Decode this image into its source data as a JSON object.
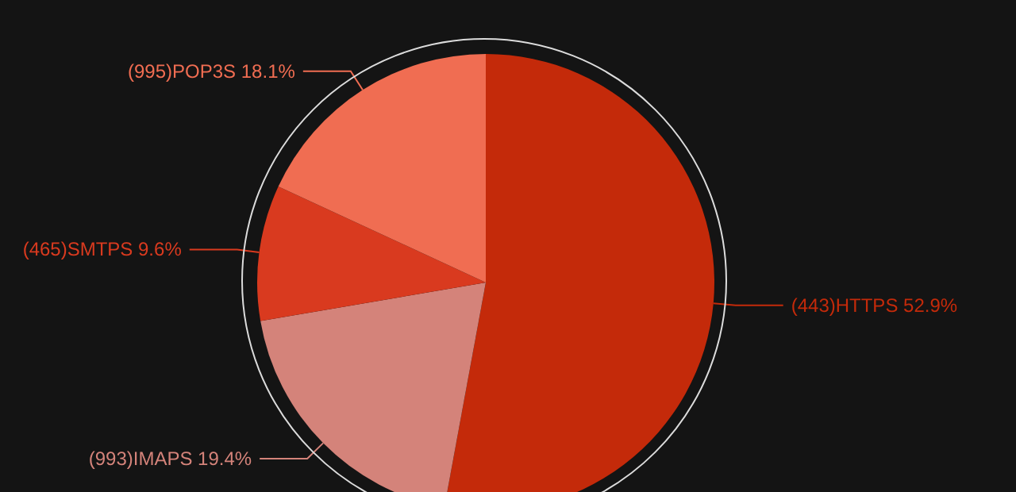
{
  "chart_data": {
    "type": "pie",
    "categories": [
      "(443)HTTPS",
      "(993)IMAPS",
      "(465)SMTPS",
      "(995)POP3S"
    ],
    "values": [
      52.9,
      19.4,
      9.6,
      18.1
    ],
    "colors": [
      "#c42a0a",
      "#d4837a",
      "#d93a1f",
      "#f06d52"
    ],
    "value_labels": [
      "52.9%",
      "19.4%",
      "9.6%",
      "18.1%"
    ],
    "legend": false
  }
}
